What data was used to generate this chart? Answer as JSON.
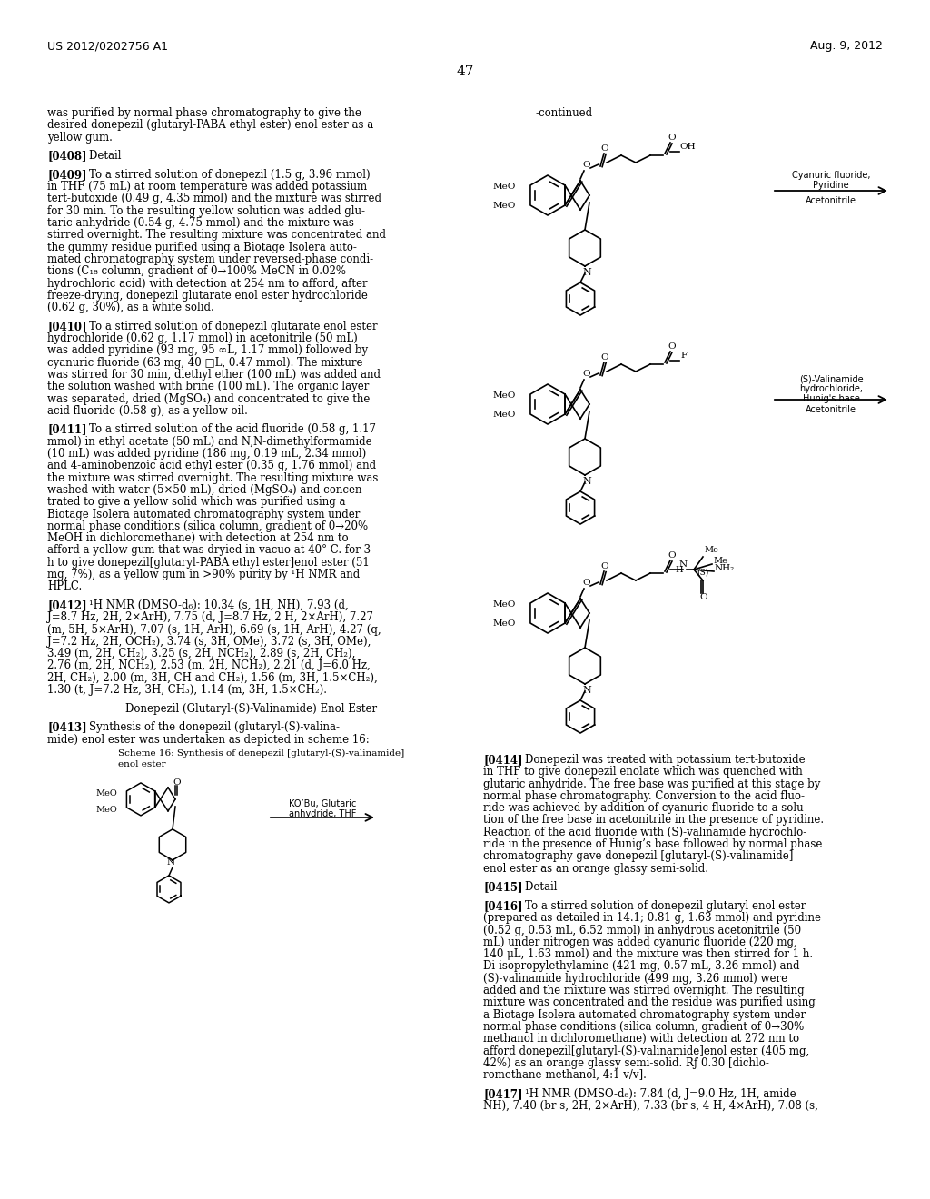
{
  "background_color": "#ffffff",
  "header_left": "US 2012/0202756 A1",
  "header_right": "Aug. 9, 2012",
  "page_number": "47",
  "left_col_lines": [
    {
      "t": "was purified by normal phase chromatography to give the",
      "b": ""
    },
    {
      "t": "desired donepezil (glutaryl-PABA ethyl ester) enol ester as a",
      "b": ""
    },
    {
      "t": "yellow gum.",
      "b": ""
    },
    {
      "t": "",
      "b": ""
    },
    {
      "t": "[0408]    Detail",
      "b": "[0408]"
    },
    {
      "t": "",
      "b": ""
    },
    {
      "t": "[0409]    To a stirred solution of donepezil (1.5 g, 3.96 mmol)",
      "b": "[0409]"
    },
    {
      "t": "in THF (75 mL) at room temperature was added potassium",
      "b": ""
    },
    {
      "t": "tert-butoxide (0.49 g, 4.35 mmol) and the mixture was stirred",
      "b": ""
    },
    {
      "t": "for 30 min. To the resulting yellow solution was added glu-",
      "b": ""
    },
    {
      "t": "taric anhydride (0.54 g, 4.75 mmol) and the mixture was",
      "b": ""
    },
    {
      "t": "stirred overnight. The resulting mixture was concentrated and",
      "b": ""
    },
    {
      "t": "the gummy residue purified using a Biotage Isolera auto-",
      "b": ""
    },
    {
      "t": "mated chromatography system under reversed-phase condi-",
      "b": ""
    },
    {
      "t": "tions (C₁₈ column, gradient of 0→100% MeCN in 0.02%",
      "b": ""
    },
    {
      "t": "hydrochloric acid) with detection at 254 nm to afford, after",
      "b": ""
    },
    {
      "t": "freeze-drying, donepezil glutarate enol ester hydrochloride",
      "b": ""
    },
    {
      "t": "(0.62 g, 30%), as a white solid.",
      "b": ""
    },
    {
      "t": "",
      "b": ""
    },
    {
      "t": "[0410]    To a stirred solution of donepezil glutarate enol ester",
      "b": "[0410]"
    },
    {
      "t": "hydrochloride (0.62 g, 1.17 mmol) in acetonitrile (50 mL)",
      "b": ""
    },
    {
      "t": "was added pyridine (93 mg, 95 ∞L, 1.17 mmol) followed by",
      "b": ""
    },
    {
      "t": "cyanuric fluoride (63 mg, 40 □L, 0.47 mmol). The mixture",
      "b": ""
    },
    {
      "t": "was stirred for 30 min, diethyl ether (100 mL) was added and",
      "b": ""
    },
    {
      "t": "the solution washed with brine (100 mL). The organic layer",
      "b": ""
    },
    {
      "t": "was separated, dried (MgSO₄) and concentrated to give the",
      "b": ""
    },
    {
      "t": "acid fluoride (0.58 g), as a yellow oil.",
      "b": ""
    },
    {
      "t": "",
      "b": ""
    },
    {
      "t": "[0411]    To a stirred solution of the acid fluoride (0.58 g, 1.17",
      "b": "[0411]"
    },
    {
      "t": "mmol) in ethyl acetate (50 mL) and N,N-dimethylformamide",
      "b": ""
    },
    {
      "t": "(10 mL) was added pyridine (186 mg, 0.19 mL, 2.34 mmol)",
      "b": ""
    },
    {
      "t": "and 4-aminobenzoic acid ethyl ester (0.35 g, 1.76 mmol) and",
      "b": ""
    },
    {
      "t": "the mixture was stirred overnight. The resulting mixture was",
      "b": ""
    },
    {
      "t": "washed with water (5×50 mL), dried (MgSO₄) and concen-",
      "b": ""
    },
    {
      "t": "trated to give a yellow solid which was purified using a",
      "b": ""
    },
    {
      "t": "Biotage Isolera automated chromatography system under",
      "b": ""
    },
    {
      "t": "normal phase conditions (silica column, gradient of 0→20%",
      "b": ""
    },
    {
      "t": "MeOH in dichloromethane) with detection at 254 nm to",
      "b": ""
    },
    {
      "t": "afford a yellow gum that was dryied in vacuo at 40° C. for 3",
      "b": ""
    },
    {
      "t": "h to give donepezil[glutaryl-PABA ethyl ester]enol ester (51",
      "b": ""
    },
    {
      "t": "mg, 7%), as a yellow gum in >90% purity by ¹H NMR and",
      "b": ""
    },
    {
      "t": "HPLC.",
      "b": ""
    },
    {
      "t": "",
      "b": ""
    },
    {
      "t": "[0412]    ¹H NMR (DMSO-d₆): 10.34 (s, 1H, NH), 7.93 (d,",
      "b": "[0412]"
    },
    {
      "t": "J=8.7 Hz, 2H, 2×ArH), 7.75 (d, J=8.7 Hz, 2 H, 2×ArH), 7.27",
      "b": ""
    },
    {
      "t": "(m, 5H, 5×ArH), 7.07 (s, 1H, ArH), 6.69 (s, 1H, ArH), 4.27 (q,",
      "b": ""
    },
    {
      "t": "J=7.2 Hz, 2H, OCH₂), 3.74 (s, 3H, OMe), 3.72 (s, 3H, OMe),",
      "b": ""
    },
    {
      "t": "3.49 (m, 2H, CH₂), 3.25 (s, 2H, NCH₂), 2.89 (s, 2H, CH₂),",
      "b": ""
    },
    {
      "t": "2.76 (m, 2H, NCH₂), 2.53 (m, 2H, NCH₂), 2.21 (d, J=6.0 Hz,",
      "b": ""
    },
    {
      "t": "2H, CH₂), 2.00 (m, 3H, CH and CH₂), 1.56 (m, 3H, 1.5×CH₂),",
      "b": ""
    },
    {
      "t": "1.30 (t, J=7.2 Hz, 3H, CH₃), 1.14 (m, 3H, 1.5×CH₂).",
      "b": ""
    },
    {
      "t": "",
      "b": ""
    },
    {
      "t": "Donepezil (Glutaryl-(S)-Valinamide) Enol Ester",
      "b": "",
      "center": true
    },
    {
      "t": "",
      "b": ""
    },
    {
      "t": "[0413]    Synthesis of the donepezil (glutaryl-(S)-valina-",
      "b": "[0413]"
    },
    {
      "t": "mide) enol ester was undertaken as depicted in scheme 16:",
      "b": ""
    }
  ],
  "right_col_lines": [
    {
      "t": "[0414]    Donepezil was treated with potassium tert-butoxide",
      "b": "[0414]"
    },
    {
      "t": "in THF to give donepezil enolate which was quenched with",
      "b": ""
    },
    {
      "t": "glutaric anhydride. The free base was purified at this stage by",
      "b": ""
    },
    {
      "t": "normal phase chromatography. Conversion to the acid fluo-",
      "b": ""
    },
    {
      "t": "ride was achieved by addition of cyanuric fluoride to a solu-",
      "b": ""
    },
    {
      "t": "tion of the free base in acetonitrile in the presence of pyridine.",
      "b": ""
    },
    {
      "t": "Reaction of the acid fluoride with (S)-valinamide hydrochlo-",
      "b": ""
    },
    {
      "t": "ride in the presence of Hunig’s base followed by normal phase",
      "b": ""
    },
    {
      "t": "chromatography gave donepezil [glutaryl-(S)-valinamide]",
      "b": ""
    },
    {
      "t": "enol ester as an orange glassy semi-solid.",
      "b": ""
    },
    {
      "t": "",
      "b": ""
    },
    {
      "t": "[0415]    Detail",
      "b": "[0415]"
    },
    {
      "t": "",
      "b": ""
    },
    {
      "t": "[0416]    To a stirred solution of donepezil glutaryl enol ester",
      "b": "[0416]"
    },
    {
      "t": "(prepared as detailed in 14.1; 0.81 g, 1.63 mmol) and pyridine",
      "b": ""
    },
    {
      "t": "(0.52 g, 0.53 mL, 6.52 mmol) in anhydrous acetonitrile (50",
      "b": ""
    },
    {
      "t": "mL) under nitrogen was added cyanuric fluoride (220 mg,",
      "b": ""
    },
    {
      "t": "140 μL, 1.63 mmol) and the mixture was then stirred for 1 h.",
      "b": ""
    },
    {
      "t": "Di-isopropylethylamine (421 mg, 0.57 mL, 3.26 mmol) and",
      "b": ""
    },
    {
      "t": "(S)-valinamide hydrochloride (499 mg, 3.26 mmol) were",
      "b": ""
    },
    {
      "t": "added and the mixture was stirred overnight. The resulting",
      "b": ""
    },
    {
      "t": "mixture was concentrated and the residue was purified using",
      "b": ""
    },
    {
      "t": "a Biotage Isolera automated chromatography system under",
      "b": ""
    },
    {
      "t": "normal phase conditions (silica column, gradient of 0→30%",
      "b": ""
    },
    {
      "t": "methanol in dichloromethane) with detection at 272 nm to",
      "b": ""
    },
    {
      "t": "afford donepezil[glutaryl-(S)-valinamide]enol ester (405 mg,",
      "b": ""
    },
    {
      "t": "42%) as an orange glassy semi-solid. Rƒ 0.30 [dichlo-",
      "b": ""
    },
    {
      "t": "romethane-methanol, 4:1 v/v].",
      "b": ""
    },
    {
      "t": "",
      "b": ""
    },
    {
      "t": "[0417]    ¹H NMR (DMSO-d₆): 7.84 (d, J=9.0 Hz, 1H, amide",
      "b": "[0417]"
    },
    {
      "t": "NH), 7.40 (br s, 2H, 2×ArH), 7.33 (br s, 4 H, 4×ArH), 7.08 (s,",
      "b": ""
    }
  ]
}
